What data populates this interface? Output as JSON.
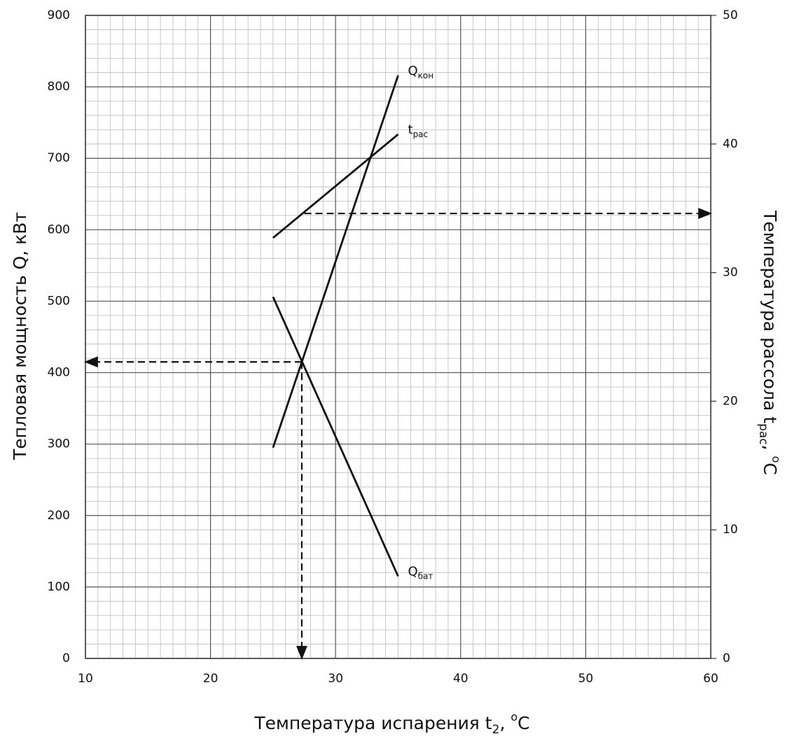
{
  "chart_data": {
    "type": "line",
    "x_label": [
      "Температура испарения t",
      "2",
      ", ",
      "o",
      "C"
    ],
    "y_label": "Тепловая мощность Q, кВт",
    "y2_label": [
      "Температура рассола t",
      "рас",
      ", ",
      "o",
      "C"
    ],
    "xlim": [
      10,
      60
    ],
    "xticks": [
      10,
      20,
      30,
      40,
      50,
      60
    ],
    "ylim": [
      0,
      900
    ],
    "yticks": [
      0,
      100,
      200,
      300,
      400,
      500,
      600,
      700,
      800,
      900
    ],
    "y2lim": [
      0,
      50
    ],
    "y2ticks": [
      0,
      10,
      20,
      30,
      40,
      50
    ],
    "grid": true,
    "series": [
      {
        "name": "Q",
        "name_sub": "кон",
        "color": "#111111",
        "x": [
          25,
          35
        ],
        "values": [
          295,
          816
        ]
      },
      {
        "name": "t",
        "name_sub": "рас",
        "color": "#111111",
        "x": [
          25,
          35
        ],
        "values": [
          32.7,
          40.75
        ],
        "axis": "y2"
      },
      {
        "name": "Q",
        "name_sub": "бат",
        "color": "#111111",
        "x": [
          25,
          35
        ],
        "values": [
          506,
          115
        ]
      }
    ],
    "guides": [
      {
        "x": [
          27.3,
          10
        ],
        "values": [
          415,
          415
        ]
      },
      {
        "x": [
          27.3,
          27.3
        ],
        "values": [
          415,
          0
        ]
      },
      {
        "x": [
          27.5,
          60
        ],
        "values": [
          34.6,
          34.6
        ],
        "axis": "y2"
      }
    ]
  }
}
